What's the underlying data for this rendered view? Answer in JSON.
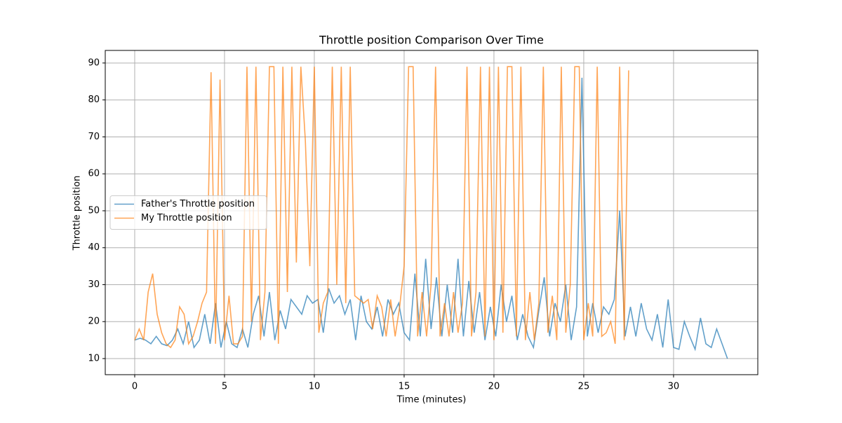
{
  "chart_data": {
    "type": "line",
    "title": "Throttle position Comparison Over Time",
    "x_label": "Time (minutes)",
    "y_label": "Throttle position",
    "xlim": [
      -1.64,
      34.69
    ],
    "ylim": [
      5.64,
      93.4
    ],
    "xticks": [
      0,
      5,
      10,
      15,
      20,
      25,
      30
    ],
    "yticks": [
      10,
      20,
      30,
      40,
      50,
      60,
      70,
      80,
      90
    ],
    "grid": true,
    "legend": "center left",
    "series": [
      {
        "name": "Father's Throttle position",
        "color": "#1f77b4",
        "x": [
          0,
          0.3,
          0.6,
          0.9,
          1.2,
          1.5,
          1.8,
          2.1,
          2.4,
          2.7,
          3,
          3.3,
          3.6,
          3.9,
          4.2,
          4.5,
          4.8,
          5.1,
          5.4,
          5.7,
          6,
          6.3,
          6.6,
          6.9,
          7.2,
          7.5,
          7.8,
          8.1,
          8.4,
          8.7,
          9,
          9.3,
          9.6,
          9.9,
          10.2,
          10.5,
          10.8,
          11.1,
          11.4,
          11.7,
          12,
          12.3,
          12.6,
          12.9,
          13.2,
          13.5,
          13.8,
          14.1,
          14.4,
          14.7,
          15,
          15.3,
          15.6,
          15.9,
          16.2,
          16.5,
          16.8,
          17.1,
          17.4,
          17.7,
          18,
          18.3,
          18.6,
          18.9,
          19.2,
          19.5,
          19.8,
          20.1,
          20.4,
          20.7,
          21,
          21.3,
          21.6,
          21.9,
          22.2,
          22.5,
          22.8,
          23.1,
          23.4,
          23.7,
          24,
          24.3,
          24.6,
          24.9,
          25.2,
          25.5,
          25.8,
          26.1,
          26.4,
          26.7,
          27,
          27.3,
          27.6,
          27.9,
          28.2,
          28.5,
          28.8,
          29.1,
          29.4,
          29.7,
          30,
          30.3,
          30.6,
          30.9,
          31.2,
          31.5,
          31.8,
          32.1,
          32.4,
          32.7,
          33
        ],
        "values": [
          15,
          15.5,
          15,
          14,
          16,
          14,
          13.5,
          15,
          18,
          14,
          20,
          13,
          15,
          22,
          14,
          25,
          13,
          20,
          14,
          13,
          18,
          13,
          22,
          27,
          16,
          28,
          15,
          23,
          18,
          26,
          24,
          22,
          27,
          25,
          26,
          17,
          29,
          25,
          27,
          22,
          26,
          15,
          27,
          20,
          18,
          24,
          16,
          26,
          22,
          25,
          17,
          15,
          33,
          16,
          37,
          18,
          32,
          16,
          30,
          17,
          37,
          16,
          31,
          17,
          28,
          15,
          24,
          16,
          30,
          20,
          27,
          15,
          22,
          16,
          13,
          23,
          32,
          16,
          25,
          20,
          30,
          15,
          24,
          86,
          16,
          25,
          17,
          24,
          22,
          26,
          50,
          16,
          24,
          16,
          25,
          18,
          15,
          22,
          13,
          26,
          13,
          12.5,
          20,
          16,
          12.5,
          21,
          14,
          13,
          18,
          14,
          10
        ]
      },
      {
        "name": "My Throttle position",
        "color": "#ff7f0e",
        "x": [
          0,
          0.25,
          0.5,
          0.75,
          1,
          1.25,
          1.5,
          1.75,
          2,
          2.25,
          2.5,
          2.75,
          3,
          3.25,
          3.5,
          3.75,
          4,
          4.25,
          4.5,
          4.75,
          5,
          5.25,
          5.5,
          5.75,
          6,
          6.25,
          6.5,
          6.75,
          7,
          7.25,
          7.5,
          7.75,
          8,
          8.25,
          8.5,
          8.75,
          9,
          9.25,
          9.5,
          9.75,
          10,
          10.25,
          10.5,
          10.75,
          11,
          11.25,
          11.5,
          11.75,
          12,
          12.25,
          12.5,
          12.75,
          13,
          13.25,
          13.5,
          13.75,
          14,
          14.25,
          14.5,
          14.75,
          15,
          15.25,
          15.5,
          15.75,
          16,
          16.25,
          16.5,
          16.75,
          17,
          17.25,
          17.5,
          17.75,
          18,
          18.25,
          18.5,
          18.75,
          19,
          19.25,
          19.5,
          19.75,
          20,
          20.25,
          20.5,
          20.75,
          21,
          21.25,
          21.5,
          21.75,
          22,
          22.25,
          22.5,
          22.75,
          23,
          23.25,
          23.5,
          23.75,
          24,
          24.25,
          24.5,
          24.75,
          25,
          25.25,
          25.5,
          25.75,
          26,
          26.25,
          26.5,
          26.75,
          27,
          27.25,
          27.5
        ],
        "values": [
          15,
          18,
          15,
          28,
          33,
          22,
          17,
          14,
          13,
          15,
          24,
          22,
          14,
          16,
          20,
          25,
          28,
          87.5,
          14,
          85.5,
          15,
          27,
          14,
          14,
          16,
          89,
          20,
          89,
          15,
          28,
          89,
          89,
          14,
          89,
          28,
          89,
          36,
          89,
          69,
          35,
          89,
          17,
          25,
          28,
          89,
          30,
          89,
          25,
          89,
          27,
          26,
          25,
          26,
          18,
          27,
          24,
          16,
          26,
          16,
          24,
          35,
          89,
          89,
          16,
          28,
          16,
          30,
          89,
          16,
          25,
          16,
          28,
          17,
          25,
          89,
          16,
          28,
          89,
          16,
          89,
          15,
          89,
          17,
          89,
          89,
          16,
          89,
          15,
          28,
          15,
          25,
          89,
          17,
          27,
          15,
          89,
          17,
          30,
          89,
          89,
          15,
          25,
          16,
          89,
          16,
          17,
          20,
          14,
          89,
          15,
          88
        ]
      }
    ]
  }
}
